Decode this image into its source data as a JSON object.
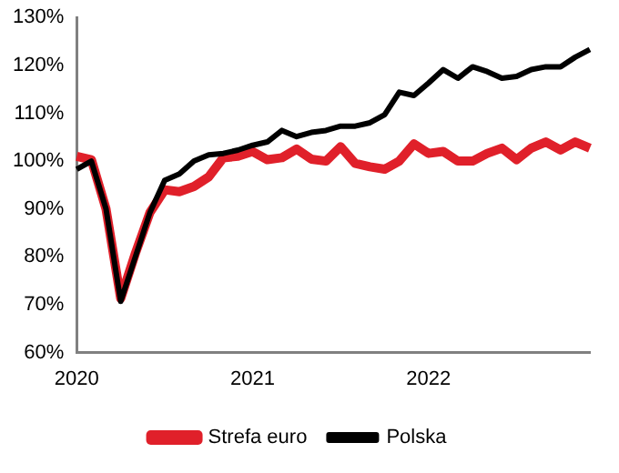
{
  "chart_data": {
    "type": "line",
    "categories": [
      "2020",
      null,
      null,
      null,
      null,
      null,
      null,
      null,
      null,
      null,
      null,
      null,
      "2021",
      null,
      null,
      null,
      null,
      null,
      null,
      null,
      null,
      null,
      null,
      null,
      "2022",
      null,
      null,
      null,
      null,
      null,
      null,
      null,
      null,
      null,
      null,
      null
    ],
    "series": [
      {
        "name": "Strefa euro",
        "color": "#e0202a",
        "values": [
          101,
          100.3,
          90,
          71.3,
          80.7,
          89.3,
          94,
          93.6,
          94.7,
          96.7,
          100.7,
          101,
          102,
          100.3,
          100.7,
          102.5,
          100.4,
          100,
          103,
          99.5,
          98.8,
          98.3,
          100,
          103.6,
          101.6,
          102,
          100,
          100,
          101.6,
          102.7,
          100.3,
          102.7,
          104,
          102.3,
          104,
          102.7
        ]
      },
      {
        "name": "Polska",
        "color": "#000000",
        "values": [
          98.3,
          100,
          90,
          70.7,
          80,
          89.3,
          96,
          97.3,
          100,
          101.3,
          101.6,
          102.3,
          103.3,
          104,
          106.4,
          105.1,
          106,
          106.4,
          107.3,
          107.3,
          108,
          109.7,
          114.4,
          113.7,
          116.3,
          119.1,
          117.3,
          119.7,
          118.7,
          117.3,
          117.7,
          119.1,
          119.7,
          119.7,
          121.7,
          123.3
        ]
      }
    ],
    "ylim": [
      60,
      130
    ],
    "yticks": [
      {
        "value": 60,
        "label": "60%"
      },
      {
        "value": 70,
        "label": "70%"
      },
      {
        "value": 80,
        "label": "80%"
      },
      {
        "value": 90,
        "label": "90%"
      },
      {
        "value": 100,
        "label": "100%"
      },
      {
        "value": 110,
        "label": "110%"
      },
      {
        "value": 120,
        "label": "120%"
      },
      {
        "value": 130,
        "label": "130%"
      }
    ],
    "grid": false,
    "legend": "bottom",
    "marker": "none",
    "line_style": "solid"
  }
}
